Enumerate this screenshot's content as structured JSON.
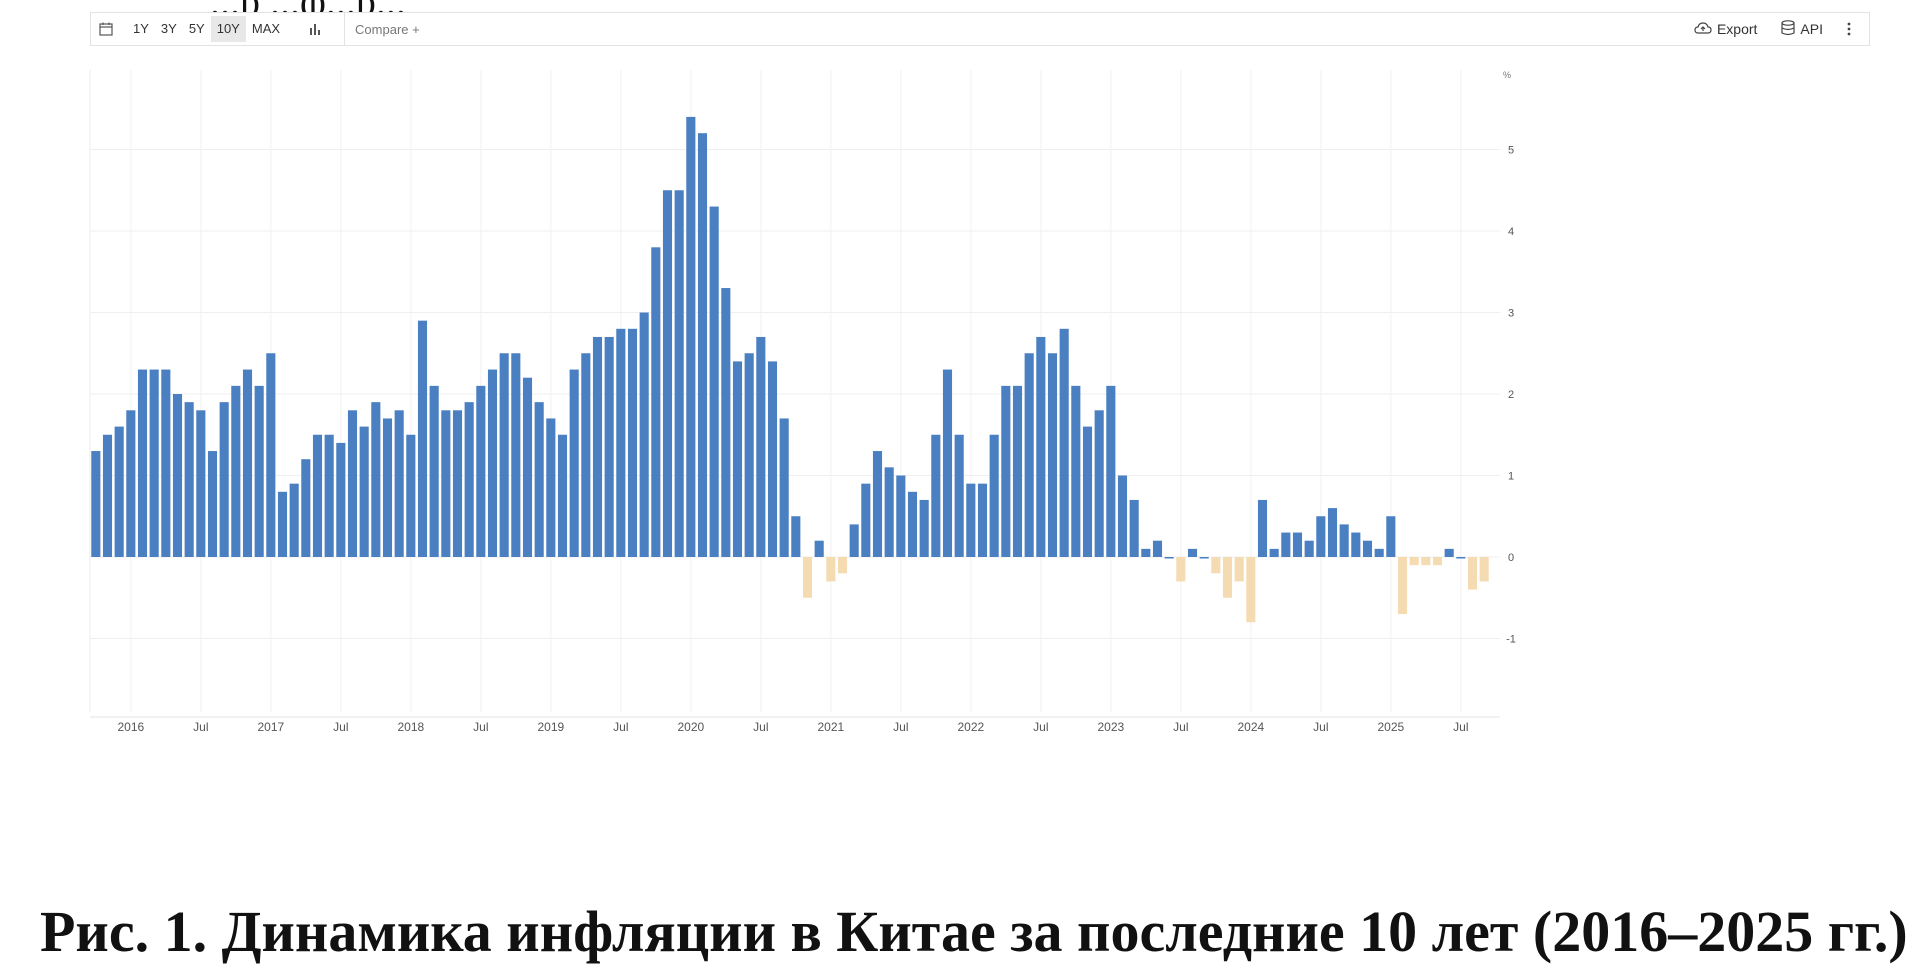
{
  "top_partial_text": "...р ...ф...р...",
  "toolbar": {
    "calendar_icon": "calendar-icon",
    "ranges": [
      "1Y",
      "3Y",
      "5Y",
      "10Y",
      "MAX"
    ],
    "active_range": "10Y",
    "chart_type_icon": "bar-chart-icon",
    "compare_label": "Compare +",
    "export_label": "Export",
    "export_icon": "cloud-upload-icon",
    "api_label": "API",
    "api_icon": "database-icon",
    "more_icon": "vertical-dots-icon"
  },
  "caption": "Рис. 1. Динамика инфляции в Китае за последние 10 лет (2016–2025 гг.)",
  "chart_data": {
    "type": "bar",
    "unit_label": "%",
    "ylim": [
      -1.5,
      6
    ],
    "y_ticks": [
      5,
      4,
      3,
      2,
      1,
      0,
      -1
    ],
    "grid": true,
    "y_axis_position": "right",
    "positive_color": "#4a7fc1",
    "negative_color": "#f5dbb1",
    "x_ticks": [
      {
        "label": "2016",
        "index": 3
      },
      {
        "label": "Jul",
        "index": 9
      },
      {
        "label": "2017",
        "index": 15
      },
      {
        "label": "Jul",
        "index": 21
      },
      {
        "label": "2018",
        "index": 27
      },
      {
        "label": "Jul",
        "index": 33
      },
      {
        "label": "2019",
        "index": 39
      },
      {
        "label": "Jul",
        "index": 45
      },
      {
        "label": "2020",
        "index": 51
      },
      {
        "label": "Jul",
        "index": 57
      },
      {
        "label": "2021",
        "index": 63
      },
      {
        "label": "Jul",
        "index": 69
      },
      {
        "label": "2022",
        "index": 75
      },
      {
        "label": "Jul",
        "index": 81
      },
      {
        "label": "2023",
        "index": 87
      },
      {
        "label": "Jul",
        "index": 93
      },
      {
        "label": "2024",
        "index": 99
      },
      {
        "label": "Jul",
        "index": 105
      },
      {
        "label": "2025",
        "index": 111
      },
      {
        "label": "Jul",
        "index": 117
      }
    ],
    "values": [
      1.3,
      1.5,
      1.6,
      1.8,
      2.3,
      2.3,
      2.3,
      2.0,
      1.9,
      1.8,
      1.3,
      1.9,
      2.1,
      2.3,
      2.1,
      2.5,
      0.8,
      0.9,
      1.2,
      1.5,
      1.5,
      1.4,
      1.8,
      1.6,
      1.9,
      1.7,
      1.8,
      1.5,
      2.9,
      2.1,
      1.8,
      1.8,
      1.9,
      2.1,
      2.3,
      2.5,
      2.5,
      2.2,
      1.9,
      1.7,
      1.5,
      2.3,
      2.5,
      2.7,
      2.7,
      2.8,
      2.8,
      3.0,
      3.8,
      4.5,
      4.5,
      5.4,
      5.2,
      4.3,
      3.3,
      2.4,
      2.5,
      2.7,
      2.4,
      1.7,
      0.5,
      -0.5,
      0.2,
      -0.3,
      -0.2,
      0.4,
      0.9,
      1.3,
      1.1,
      1.0,
      0.8,
      0.7,
      1.5,
      2.3,
      1.5,
      0.9,
      0.9,
      1.5,
      2.1,
      2.1,
      2.5,
      2.7,
      2.5,
      2.8,
      2.1,
      1.6,
      1.8,
      2.1,
      1.0,
      0.7,
      0.1,
      0.2,
      0.0,
      -0.3,
      0.1,
      0.0,
      -0.2,
      -0.5,
      -0.3,
      -0.8,
      0.7,
      0.1,
      0.3,
      0.3,
      0.2,
      0.5,
      0.6,
      0.4,
      0.3,
      0.2,
      0.1,
      0.5,
      -0.7,
      -0.1,
      -0.1,
      -0.1,
      0.1,
      0.0,
      -0.4,
      -0.3
    ]
  }
}
